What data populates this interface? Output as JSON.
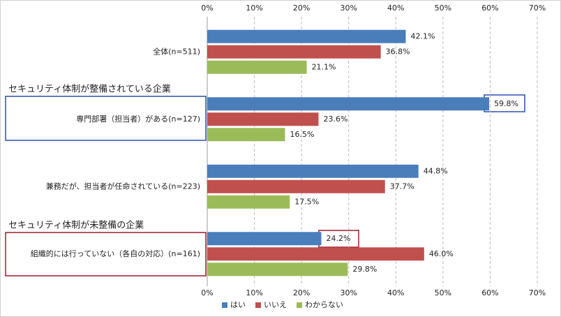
{
  "chart_data": {
    "type": "hbar",
    "categories": [
      "全体(n=511)",
      "専門部署（担当者）がある(n=127)",
      "兼務だが、担当者が任命されている(n=223)",
      "組織的には行っていない（各自の対応）(n=161)"
    ],
    "series": [
      {
        "name": "はい",
        "color": "#4a7ebb",
        "values": [
          42.1,
          59.8,
          44.8,
          24.2
        ],
        "value_labels": [
          "42.1%",
          "59.8%",
          "44.8%",
          "24.2%"
        ]
      },
      {
        "name": "いいえ",
        "color": "#c0504d",
        "values": [
          36.8,
          23.6,
          37.7,
          46.0
        ],
        "value_labels": [
          "36.8%",
          "23.6%",
          "37.7%",
          "46.0%"
        ]
      },
      {
        "name": "わからない",
        "color": "#9bbb59",
        "values": [
          21.1,
          16.5,
          17.5,
          29.8
        ],
        "value_labels": [
          "21.1%",
          "16.5%",
          "17.5%",
          "29.8%"
        ]
      }
    ],
    "xlim": [
      0,
      70
    ],
    "xticks": [
      {
        "value": 0,
        "label": "0%"
      },
      {
        "value": 10,
        "label": "10%"
      },
      {
        "value": 20,
        "label": "20%"
      },
      {
        "value": 30,
        "label": "30%"
      },
      {
        "value": 40,
        "label": "40%"
      },
      {
        "value": 50,
        "label": "50%"
      },
      {
        "value": 60,
        "label": "60%"
      },
      {
        "value": 70,
        "label": "70%"
      }
    ],
    "grid": true,
    "legend": "bottom",
    "annotations": [
      {
        "text": "セキュリティ体制が整備されている企業",
        "color": "#1f3fa8"
      },
      {
        "text": "セキュリティ体制が未整備の企業",
        "color": "#a01c2c"
      }
    ]
  }
}
